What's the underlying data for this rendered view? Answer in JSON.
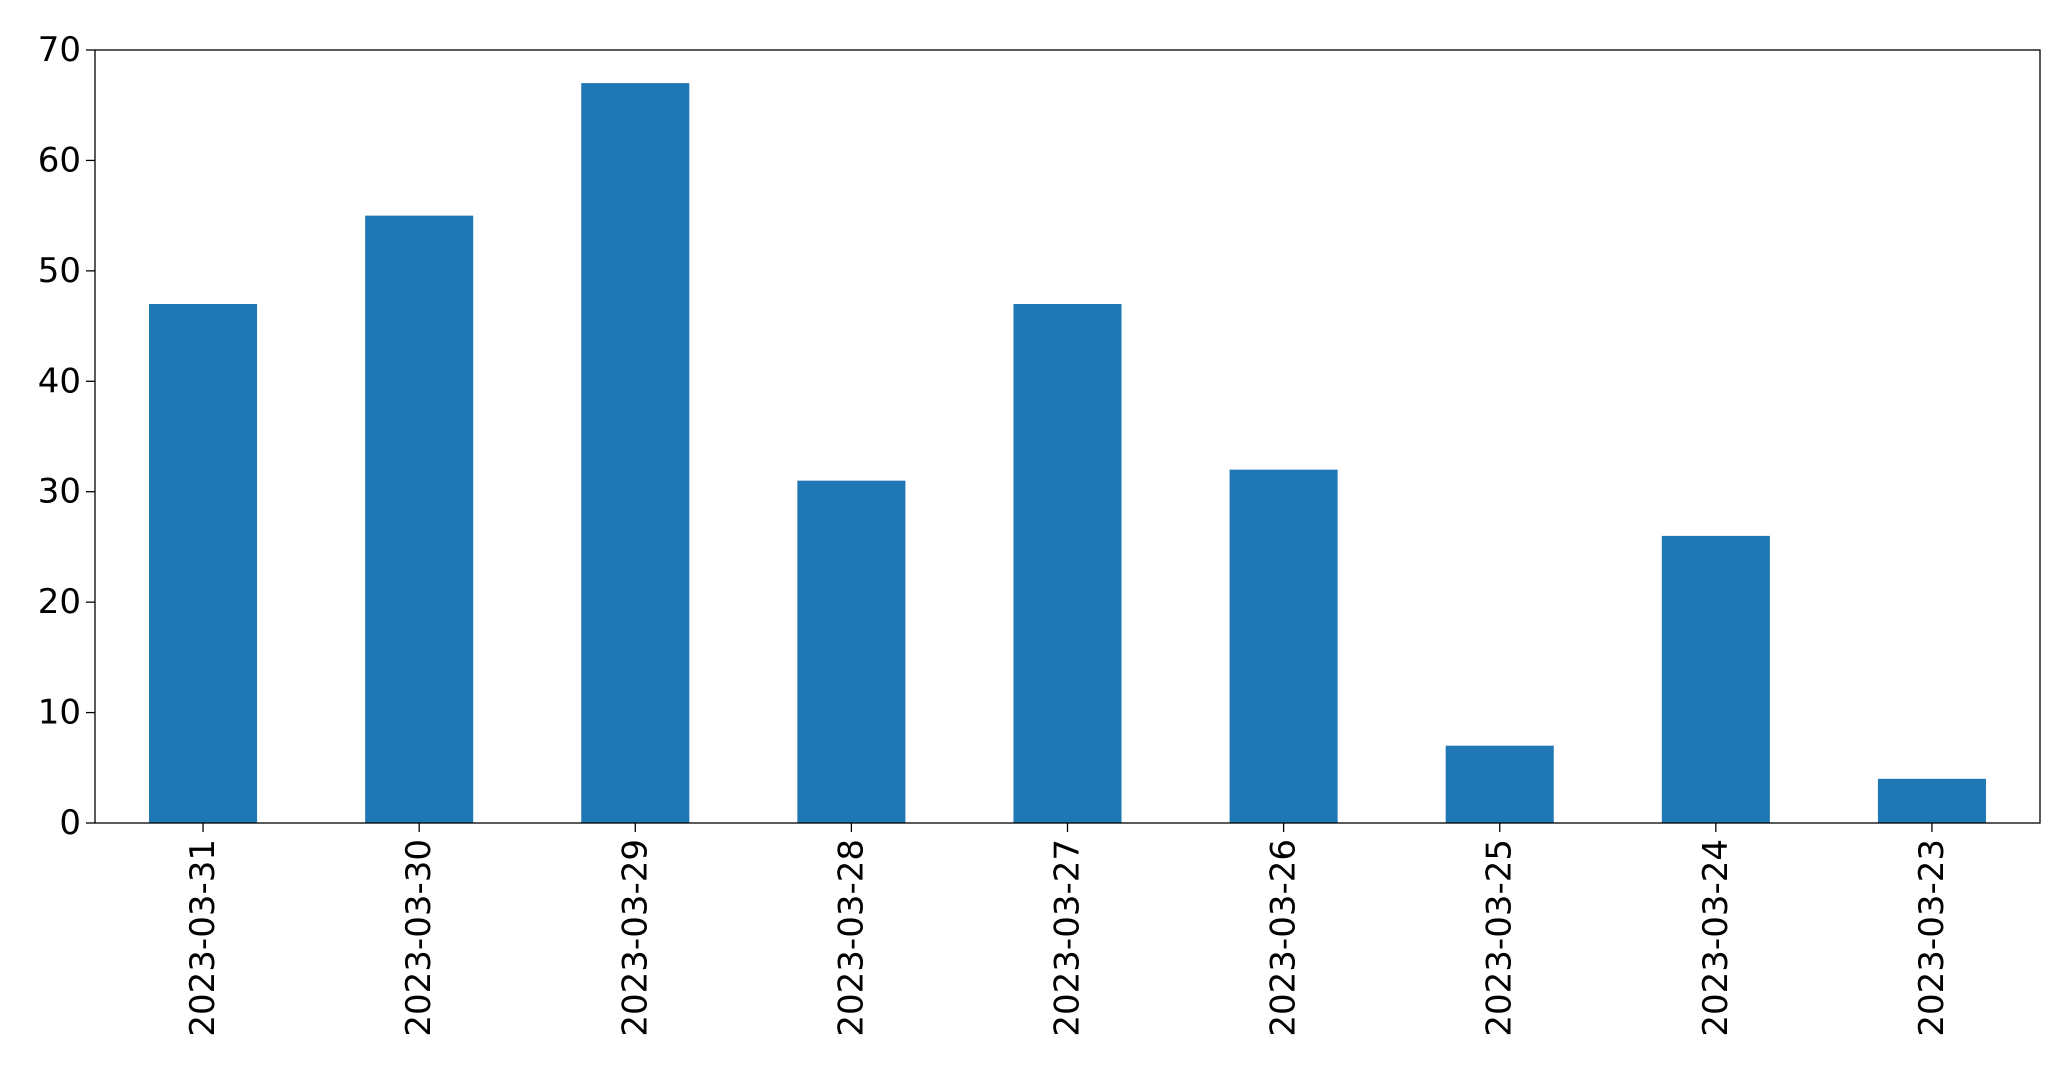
{
  "chart_data": {
    "type": "bar",
    "categories": [
      "2023-03-31",
      "2023-03-30",
      "2023-03-29",
      "2023-03-28",
      "2023-03-27",
      "2023-03-26",
      "2023-03-25",
      "2023-03-24",
      "2023-03-23"
    ],
    "values": [
      47,
      55,
      67,
      31,
      47,
      32,
      7,
      26,
      4
    ],
    "title": "",
    "xlabel": "",
    "ylabel": "",
    "ylim": [
      0,
      70
    ],
    "yticks": [
      0,
      10,
      20,
      30,
      40,
      50,
      60,
      70
    ],
    "grid": false,
    "legend": "none",
    "bar_color": "#1f77b4"
  }
}
